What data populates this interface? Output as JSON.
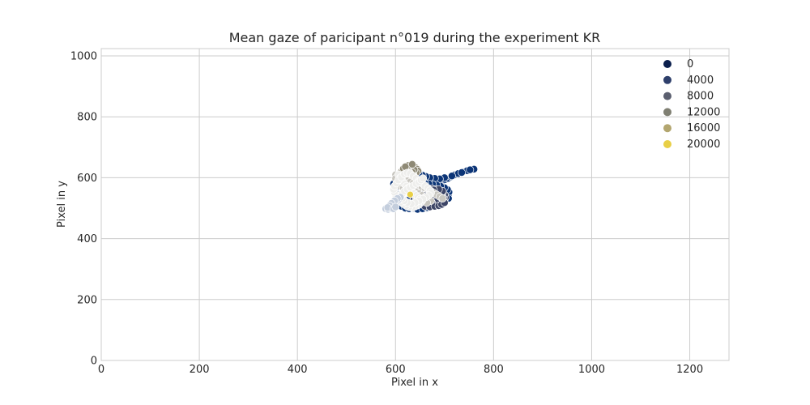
{
  "chart_data": {
    "type": "scatter",
    "title": "Mean gaze of paricipant n°019 during the experiment KR",
    "xlabel": "Pixel in x",
    "ylabel": "Pixel in y",
    "xlim": [
      0,
      1280
    ],
    "ylim": [
      0,
      1024
    ],
    "xticks": [
      0,
      200,
      400,
      600,
      800,
      1000,
      1200
    ],
    "yticks": [
      0,
      200,
      400,
      600,
      800,
      1000
    ],
    "grid": true,
    "legend_position": "top-right",
    "legend": [
      {
        "label": "0",
        "color": "#0b1f4d"
      },
      {
        "label": "4000",
        "color": "#2e3f6b"
      },
      {
        "label": "8000",
        "color": "#5b5f6f"
      },
      {
        "label": "12000",
        "color": "#7f7f72"
      },
      {
        "label": "16000",
        "color": "#b3a66f"
      },
      {
        "label": "20000",
        "color": "#e8cf46"
      }
    ],
    "series": [
      {
        "hue": "0-4000",
        "color": "#0c3577",
        "points": [
          [
            590,
            498
          ],
          [
            598,
            502
          ],
          [
            605,
            508
          ],
          [
            612,
            515
          ],
          [
            618,
            520
          ],
          [
            624,
            526
          ],
          [
            630,
            532
          ],
          [
            636,
            538
          ],
          [
            642,
            543
          ],
          [
            648,
            548
          ],
          [
            652,
            553
          ],
          [
            657,
            558
          ],
          [
            662,
            562
          ],
          [
            667,
            566
          ],
          [
            671,
            570
          ],
          [
            676,
            574
          ],
          [
            681,
            578
          ],
          [
            686,
            582
          ],
          [
            691,
            586
          ],
          [
            696,
            590
          ],
          [
            701,
            594
          ],
          [
            707,
            598
          ],
          [
            713,
            603
          ],
          [
            720,
            609
          ],
          [
            728,
            614
          ],
          [
            737,
            619
          ],
          [
            746,
            623
          ],
          [
            760,
            628
          ],
          [
            752,
            626
          ],
          [
            735,
            617
          ],
          [
            715,
            606
          ],
          [
            700,
            600
          ],
          [
            690,
            596
          ],
          [
            680,
            598
          ],
          [
            670,
            600
          ],
          [
            662,
            604
          ],
          [
            655,
            608
          ],
          [
            648,
            612
          ],
          [
            640,
            608
          ],
          [
            633,
            600
          ],
          [
            627,
            594
          ],
          [
            620,
            588
          ],
          [
            614,
            582
          ],
          [
            608,
            576
          ],
          [
            602,
            570
          ],
          [
            596,
            562
          ],
          [
            600,
            550
          ],
          [
            606,
            540
          ],
          [
            612,
            532
          ],
          [
            618,
            524
          ],
          [
            625,
            518
          ],
          [
            632,
            512
          ],
          [
            640,
            508
          ],
          [
            648,
            504
          ],
          [
            656,
            502
          ],
          [
            664,
            500
          ],
          [
            672,
            506
          ],
          [
            680,
            512
          ],
          [
            688,
            518
          ],
          [
            694,
            524
          ],
          [
            700,
            530
          ],
          [
            705,
            537
          ],
          [
            708,
            545
          ],
          [
            709,
            553
          ],
          [
            706,
            561
          ],
          [
            700,
            567
          ],
          [
            692,
            572
          ],
          [
            684,
            576
          ],
          [
            676,
            578
          ],
          [
            668,
            580
          ],
          [
            660,
            582
          ],
          [
            652,
            584
          ],
          [
            644,
            586
          ],
          [
            636,
            590
          ],
          [
            628,
            592
          ],
          [
            620,
            594
          ],
          [
            612,
            590
          ],
          [
            604,
            586
          ],
          [
            596,
            580
          ],
          [
            612,
            506
          ],
          [
            620,
            500
          ],
          [
            628,
            498
          ],
          [
            636,
            500
          ],
          [
            645,
            496
          ],
          [
            655,
            498
          ],
          [
            665,
            502
          ],
          [
            675,
            508
          ],
          [
            685,
            514
          ],
          [
            692,
            520
          ],
          [
            700,
            526
          ],
          [
            708,
            532
          ],
          [
            700,
            540
          ],
          [
            690,
            546
          ],
          [
            680,
            552
          ],
          [
            670,
            556
          ],
          [
            660,
            560
          ],
          [
            650,
            564
          ],
          [
            640,
            568
          ],
          [
            630,
            572
          ],
          [
            622,
            576
          ]
        ]
      },
      {
        "hue": "4000-10000",
        "color": "#3d4566",
        "points": [
          [
            640,
            520
          ],
          [
            648,
            516
          ],
          [
            656,
            512
          ],
          [
            664,
            510
          ],
          [
            672,
            508
          ],
          [
            680,
            510
          ],
          [
            688,
            514
          ],
          [
            696,
            520
          ],
          [
            700,
            528
          ],
          [
            702,
            536
          ],
          [
            700,
            544
          ],
          [
            696,
            552
          ],
          [
            690,
            558
          ],
          [
            682,
            562
          ],
          [
            674,
            564
          ],
          [
            666,
            562
          ],
          [
            658,
            558
          ],
          [
            650,
            552
          ],
          [
            644,
            546
          ],
          [
            640,
            540
          ],
          [
            638,
            532
          ],
          [
            642,
            526
          ],
          [
            650,
            530
          ],
          [
            658,
            534
          ],
          [
            666,
            538
          ],
          [
            674,
            542
          ],
          [
            682,
            546
          ],
          [
            690,
            548
          ],
          [
            684,
            540
          ],
          [
            676,
            534
          ],
          [
            668,
            528
          ],
          [
            660,
            524
          ],
          [
            652,
            522
          ],
          [
            646,
            532
          ],
          [
            654,
            540
          ],
          [
            662,
            546
          ],
          [
            670,
            550
          ],
          [
            678,
            554
          ],
          [
            686,
            552
          ],
          [
            694,
            540
          ],
          [
            698,
            532
          ],
          [
            690,
            526
          ],
          [
            682,
            522
          ],
          [
            674,
            518
          ],
          [
            666,
            516
          ],
          [
            658,
            518
          ],
          [
            652,
            526
          ],
          [
            660,
            506
          ],
          [
            670,
            504
          ],
          [
            680,
            506
          ],
          [
            688,
            508
          ],
          [
            694,
            512
          ],
          [
            700,
            518
          ],
          [
            696,
            556
          ],
          [
            688,
            562
          ],
          [
            678,
            560
          ],
          [
            668,
            556
          ],
          [
            658,
            552
          ]
        ]
      },
      {
        "hue": "10000-14000",
        "color": "#8f8a76",
        "points": [
          [
            612,
            620
          ],
          [
            618,
            626
          ],
          [
            624,
            632
          ],
          [
            630,
            636
          ],
          [
            636,
            638
          ],
          [
            640,
            634
          ],
          [
            644,
            628
          ],
          [
            646,
            622
          ],
          [
            642,
            616
          ],
          [
            636,
            612
          ],
          [
            630,
            610
          ],
          [
            624,
            612
          ],
          [
            618,
            614
          ],
          [
            614,
            618
          ],
          [
            620,
            622
          ],
          [
            626,
            628
          ],
          [
            632,
            630
          ],
          [
            638,
            626
          ],
          [
            634,
            618
          ],
          [
            628,
            618
          ],
          [
            622,
            624
          ],
          [
            616,
            630
          ],
          [
            626,
            640
          ],
          [
            634,
            644
          ],
          [
            620,
            636
          ]
        ]
      },
      {
        "hue": "14000-18000",
        "color": "#c8c6c0",
        "points": [
          [
            600,
            610
          ],
          [
            606,
            604
          ],
          [
            612,
            598
          ],
          [
            618,
            594
          ],
          [
            624,
            590
          ],
          [
            630,
            586
          ],
          [
            636,
            582
          ],
          [
            642,
            578
          ],
          [
            648,
            574
          ],
          [
            654,
            570
          ],
          [
            660,
            566
          ],
          [
            666,
            562
          ],
          [
            672,
            556
          ],
          [
            678,
            550
          ],
          [
            684,
            544
          ],
          [
            690,
            538
          ],
          [
            696,
            532
          ],
          [
            600,
            598
          ],
          [
            606,
            590
          ],
          [
            612,
            584
          ],
          [
            618,
            578
          ],
          [
            624,
            572
          ],
          [
            630,
            566
          ],
          [
            636,
            560
          ],
          [
            642,
            554
          ],
          [
            648,
            548
          ],
          [
            654,
            542
          ],
          [
            660,
            536
          ],
          [
            666,
            530
          ],
          [
            672,
            524
          ],
          [
            610,
            572
          ],
          [
            616,
            566
          ],
          [
            622,
            560
          ],
          [
            628,
            554
          ],
          [
            634,
            548
          ],
          [
            640,
            542
          ],
          [
            646,
            536
          ],
          [
            652,
            530
          ],
          [
            658,
            524
          ],
          [
            664,
            518
          ]
        ]
      },
      {
        "hue": "18000-21000",
        "color": "#eeeeec",
        "points": [
          [
            606,
            610
          ],
          [
            610,
            600
          ],
          [
            614,
            590
          ],
          [
            618,
            580
          ],
          [
            622,
            572
          ],
          [
            626,
            566
          ],
          [
            630,
            560
          ],
          [
            634,
            554
          ],
          [
            638,
            548
          ],
          [
            642,
            542
          ],
          [
            646,
            536
          ],
          [
            650,
            530
          ],
          [
            654,
            524
          ],
          [
            650,
            516
          ],
          [
            646,
            510
          ],
          [
            640,
            506
          ],
          [
            634,
            502
          ],
          [
            628,
            504
          ],
          [
            622,
            508
          ],
          [
            616,
            514
          ],
          [
            612,
            520
          ],
          [
            608,
            528
          ],
          [
            604,
            536
          ],
          [
            600,
            544
          ],
          [
            598,
            552
          ],
          [
            596,
            562
          ],
          [
            598,
            572
          ],
          [
            602,
            582
          ],
          [
            606,
            592
          ],
          [
            612,
            602
          ],
          [
            618,
            612
          ],
          [
            624,
            616
          ],
          [
            630,
            614
          ],
          [
            636,
            606
          ],
          [
            642,
            598
          ],
          [
            648,
            590
          ],
          [
            654,
            582
          ],
          [
            660,
            574
          ],
          [
            666,
            566
          ],
          [
            670,
            558
          ],
          [
            672,
            550
          ],
          [
            668,
            542
          ],
          [
            662,
            536
          ],
          [
            656,
            530
          ],
          [
            648,
            524
          ],
          [
            640,
            518
          ],
          [
            632,
            514
          ],
          [
            624,
            518
          ],
          [
            618,
            524
          ],
          [
            614,
            532
          ],
          [
            612,
            540
          ],
          [
            614,
            548
          ],
          [
            618,
            556
          ],
          [
            624,
            562
          ],
          [
            630,
            568
          ],
          [
            636,
            574
          ],
          [
            642,
            580
          ],
          [
            648,
            586
          ],
          [
            652,
            592
          ],
          [
            656,
            598
          ]
        ]
      },
      {
        "hue": "18000-21000",
        "color": "#c4cedd",
        "points": [
          [
            580,
            498
          ],
          [
            585,
            496
          ],
          [
            590,
            500
          ],
          [
            594,
            506
          ],
          [
            598,
            512
          ],
          [
            602,
            520
          ],
          [
            606,
            528
          ],
          [
            610,
            536
          ],
          [
            604,
            532
          ],
          [
            598,
            524
          ],
          [
            592,
            516
          ],
          [
            588,
            508
          ],
          [
            584,
            502
          ],
          [
            596,
            498
          ],
          [
            600,
            504
          ]
        ]
      },
      {
        "hue": "20000",
        "color": "#e8cf46",
        "points": [
          [
            630,
            545
          ]
        ]
      }
    ]
  }
}
